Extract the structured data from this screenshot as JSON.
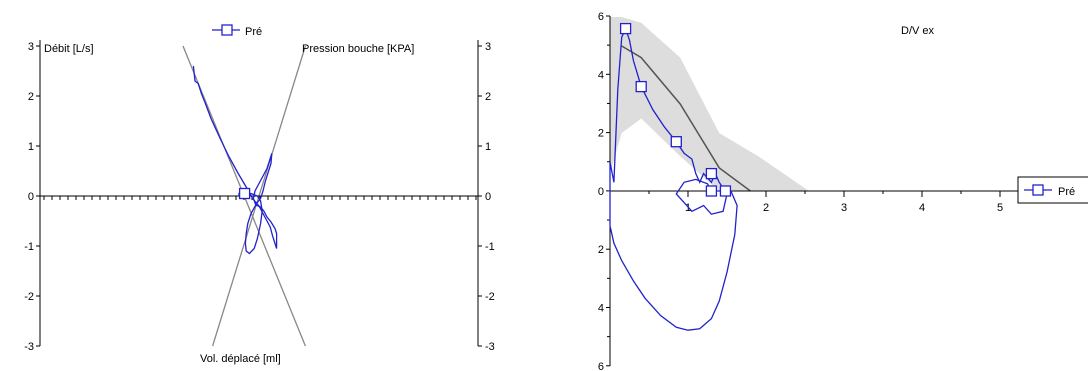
{
  "chart_data": [
    {
      "type": "line",
      "legend": {
        "label": "Pré",
        "placement": "top-center"
      },
      "labels": {
        "left_axis": "Débit [L/s]",
        "right_axis": "Pression bouche [KPA]",
        "bottom": "Vol. déplacé [ml]"
      },
      "y_ticks_left": [
        "3",
        "2",
        "1",
        "0",
        "-1",
        "-2",
        "-3"
      ],
      "y_ticks_right": [
        "3",
        "2",
        "1",
        "0",
        "-1",
        "-2",
        "-3"
      ],
      "ylim": [
        -3,
        3
      ],
      "reference_lines": [
        {
          "from": [
            -0.95,
            3.0
          ],
          "to": [
            0.58,
            -3.0
          ]
        },
        {
          "from": [
            -0.58,
            -3.0
          ],
          "to": [
            0.58,
            3.0
          ]
        }
      ],
      "series": [
        {
          "name": "Pré",
          "color": "#2222cc",
          "points": [
            [
              -0.82,
              2.6
            ],
            [
              -0.8,
              2.3
            ],
            [
              -0.76,
              2.25
            ],
            [
              -0.72,
              2.05
            ],
            [
              -0.67,
              1.85
            ],
            [
              -0.6,
              1.55
            ],
            [
              -0.5,
              1.2
            ],
            [
              -0.38,
              0.8
            ],
            [
              -0.26,
              0.45
            ],
            [
              -0.16,
              0.18
            ],
            [
              -0.08,
              -0.05
            ],
            [
              0.0,
              -0.2
            ],
            [
              0.05,
              -0.35
            ],
            [
              0.1,
              -0.5
            ],
            [
              0.14,
              -0.62
            ],
            [
              0.17,
              -0.8
            ],
            [
              0.2,
              -0.95
            ],
            [
              0.22,
              -1.05
            ],
            [
              0.22,
              -0.75
            ],
            [
              0.2,
              -0.65
            ],
            [
              0.15,
              -0.52
            ],
            [
              0.1,
              -0.42
            ],
            [
              0.06,
              -0.3
            ],
            [
              0.02,
              -0.22
            ],
            [
              -0.04,
              -0.18
            ],
            [
              -0.07,
              -0.05
            ],
            [
              -0.05,
              0.1
            ],
            [
              0.0,
              0.25
            ],
            [
              0.05,
              0.4
            ],
            [
              0.1,
              0.55
            ],
            [
              0.13,
              0.7
            ],
            [
              0.16,
              0.85
            ],
            [
              0.15,
              0.65
            ],
            [
              0.12,
              0.5
            ],
            [
              0.08,
              0.3
            ],
            [
              0.05,
              0.1
            ],
            [
              0.02,
              -0.05
            ],
            [
              -0.03,
              -0.15
            ],
            [
              -0.1,
              -0.35
            ],
            [
              -0.14,
              -0.55
            ],
            [
              -0.16,
              -0.75
            ],
            [
              -0.17,
              -0.95
            ],
            [
              -0.16,
              -1.1
            ],
            [
              -0.12,
              -1.15
            ],
            [
              -0.06,
              -1.05
            ],
            [
              -0.02,
              -0.85
            ],
            [
              0.02,
              -0.55
            ],
            [
              0.04,
              -0.3
            ],
            [
              0.02,
              -0.1
            ],
            [
              -0.02,
              0.0
            ],
            [
              -0.1,
              0.05
            ],
            [
              -0.18,
              0.05
            ],
            [
              -0.25,
              0.05
            ],
            [
              -0.25,
              0.0
            ],
            [
              -0.2,
              -0.05
            ],
            [
              -0.17,
              -0.05
            ]
          ]
        }
      ],
      "marker": {
        "x": -0.18,
        "y": 0.05
      }
    },
    {
      "type": "line",
      "title": "D/V ex",
      "legend": {
        "label": "Pré",
        "placement": "right"
      },
      "x_ticks": [
        "1",
        "2",
        "3",
        "4",
        "5"
      ],
      "y_ticks": [
        "6",
        "4",
        "2",
        "0",
        "2",
        "4",
        "6"
      ],
      "xlim": [
        0,
        5.6
      ],
      "ylim": [
        -6,
        6
      ],
      "reference_band": {
        "x": [
          0.0,
          0.15,
          0.4,
          0.9,
          1.4,
          1.9,
          2.55
        ],
        "upper": [
          6.0,
          6.0,
          5.8,
          4.6,
          2.0,
          1.2,
          0.0
        ],
        "lower": [
          0.6,
          2.0,
          2.5,
          1.2,
          0.0,
          0.0,
          0.0
        ]
      },
      "reference_line": {
        "x": [
          0.15,
          0.4,
          0.9,
          1.4,
          1.8
        ],
        "y": [
          5.0,
          4.6,
          3.0,
          0.8,
          0.0
        ]
      },
      "series": [
        {
          "name": "Pré",
          "color": "#2222cc",
          "points": [
            [
              0.0,
              1.0
            ],
            [
              0.05,
              0.3
            ],
            [
              0.1,
              3.5
            ],
            [
              0.15,
              5.3
            ],
            [
              0.2,
              5.6
            ],
            [
              0.25,
              5.2
            ],
            [
              0.3,
              4.5
            ],
            [
              0.4,
              3.6
            ],
            [
              0.55,
              2.8
            ],
            [
              0.7,
              2.2
            ],
            [
              0.85,
              1.7
            ],
            [
              0.95,
              1.3
            ],
            [
              1.05,
              1.1
            ],
            [
              1.1,
              0.6
            ],
            [
              1.15,
              0.3
            ],
            [
              1.2,
              0.6
            ],
            [
              1.3,
              0.3
            ],
            [
              1.35,
              0.6
            ],
            [
              1.4,
              0.3
            ],
            [
              1.45,
              0.1
            ],
            [
              1.48,
              0.0
            ],
            [
              1.5,
              -0.1
            ],
            [
              1.45,
              -0.7
            ],
            [
              1.3,
              -0.8
            ],
            [
              1.2,
              -0.5
            ],
            [
              1.05,
              -0.7
            ],
            [
              0.95,
              -0.4
            ],
            [
              0.85,
              -0.1
            ],
            [
              0.95,
              0.3
            ],
            [
              1.1,
              0.4
            ],
            [
              1.25,
              0.25
            ],
            [
              1.3,
              0.0
            ],
            [
              1.4,
              0.0
            ],
            [
              1.55,
              0.0
            ],
            [
              1.63,
              -0.5
            ],
            [
              1.6,
              -1.5
            ],
            [
              1.5,
              -2.8
            ],
            [
              1.4,
              -3.8
            ],
            [
              1.3,
              -4.4
            ],
            [
              1.15,
              -4.75
            ],
            [
              1.0,
              -4.8
            ],
            [
              0.85,
              -4.7
            ],
            [
              0.65,
              -4.3
            ],
            [
              0.45,
              -3.7
            ],
            [
              0.3,
              -3.1
            ],
            [
              0.15,
              -2.4
            ],
            [
              0.05,
              -1.8
            ],
            [
              0.0,
              -1.2
            ],
            [
              0.0,
              0.0
            ],
            [
              0.0,
              1.0
            ]
          ]
        }
      ],
      "markers": [
        [
          0.2,
          5.6
        ],
        [
          0.4,
          3.6
        ],
        [
          0.85,
          1.7
        ],
        [
          1.3,
          0.6
        ],
        [
          1.3,
          0.0
        ],
        [
          1.48,
          0.0
        ]
      ]
    }
  ]
}
